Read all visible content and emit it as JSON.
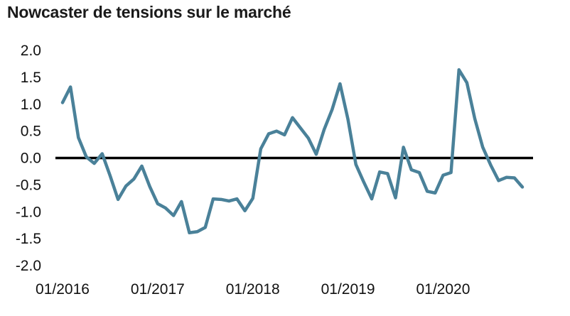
{
  "chart_data": {
    "type": "line",
    "title": "Nowcaster de tensions sur le marché",
    "xlabel": "",
    "ylabel": "",
    "ylim": [
      -2.0,
      2.0
    ],
    "yticks": [
      "2.0",
      "1.5",
      "1.0",
      "0.5",
      "0.0",
      "-0.5",
      "-1.0",
      "-1.5",
      "-2.0"
    ],
    "xtick_labels": [
      "01/2016",
      "01/2017",
      "01/2018",
      "01/2019",
      "01/2020"
    ],
    "zero_line": true,
    "grid": false,
    "colors": {
      "series": "#4a8199",
      "axis": "#000000"
    },
    "series": [
      {
        "x": [
          "2016-01",
          "2016-02",
          "2016-03",
          "2016-04",
          "2016-05",
          "2016-06",
          "2016-07",
          "2016-08",
          "2016-09",
          "2016-10",
          "2016-11",
          "2016-12",
          "2017-01",
          "2017-02",
          "2017-03",
          "2017-04",
          "2017-05",
          "2017-06",
          "2017-07",
          "2017-08",
          "2017-09",
          "2017-10",
          "2017-11",
          "2017-12",
          "2018-01",
          "2018-02",
          "2018-03",
          "2018-04",
          "2018-05",
          "2018-06",
          "2018-07",
          "2018-08",
          "2018-09",
          "2018-10",
          "2018-11",
          "2018-12",
          "2019-01",
          "2019-02",
          "2019-03",
          "2019-04",
          "2019-05",
          "2019-06",
          "2019-07",
          "2019-08",
          "2019-09",
          "2019-10",
          "2019-11",
          "2019-12",
          "2020-01",
          "2020-02",
          "2020-03",
          "2020-04",
          "2020-05",
          "2020-06",
          "2020-07",
          "2020-08",
          "2020-09",
          "2020-10",
          "2020-11",
          "2020-12"
        ],
        "values": [
          1.03,
          1.32,
          0.38,
          0.02,
          -0.1,
          0.08,
          -0.33,
          -0.77,
          -0.52,
          -0.39,
          -0.15,
          -0.53,
          -0.85,
          -0.93,
          -1.07,
          -0.81,
          -1.39,
          -1.37,
          -1.29,
          -0.76,
          -0.77,
          -0.8,
          -0.76,
          -0.98,
          -0.75,
          0.17,
          0.45,
          0.5,
          0.43,
          0.75,
          0.56,
          0.37,
          0.07,
          0.53,
          0.9,
          1.38,
          0.72,
          -0.12,
          -0.45,
          -0.76,
          -0.26,
          -0.29,
          -0.74,
          0.2,
          -0.22,
          -0.27,
          -0.62,
          -0.65,
          -0.32,
          -0.27,
          1.64,
          1.4,
          0.73,
          0.2,
          -0.13,
          -0.42,
          -0.36,
          -0.37,
          -0.54,
          null
        ]
      }
    ]
  }
}
